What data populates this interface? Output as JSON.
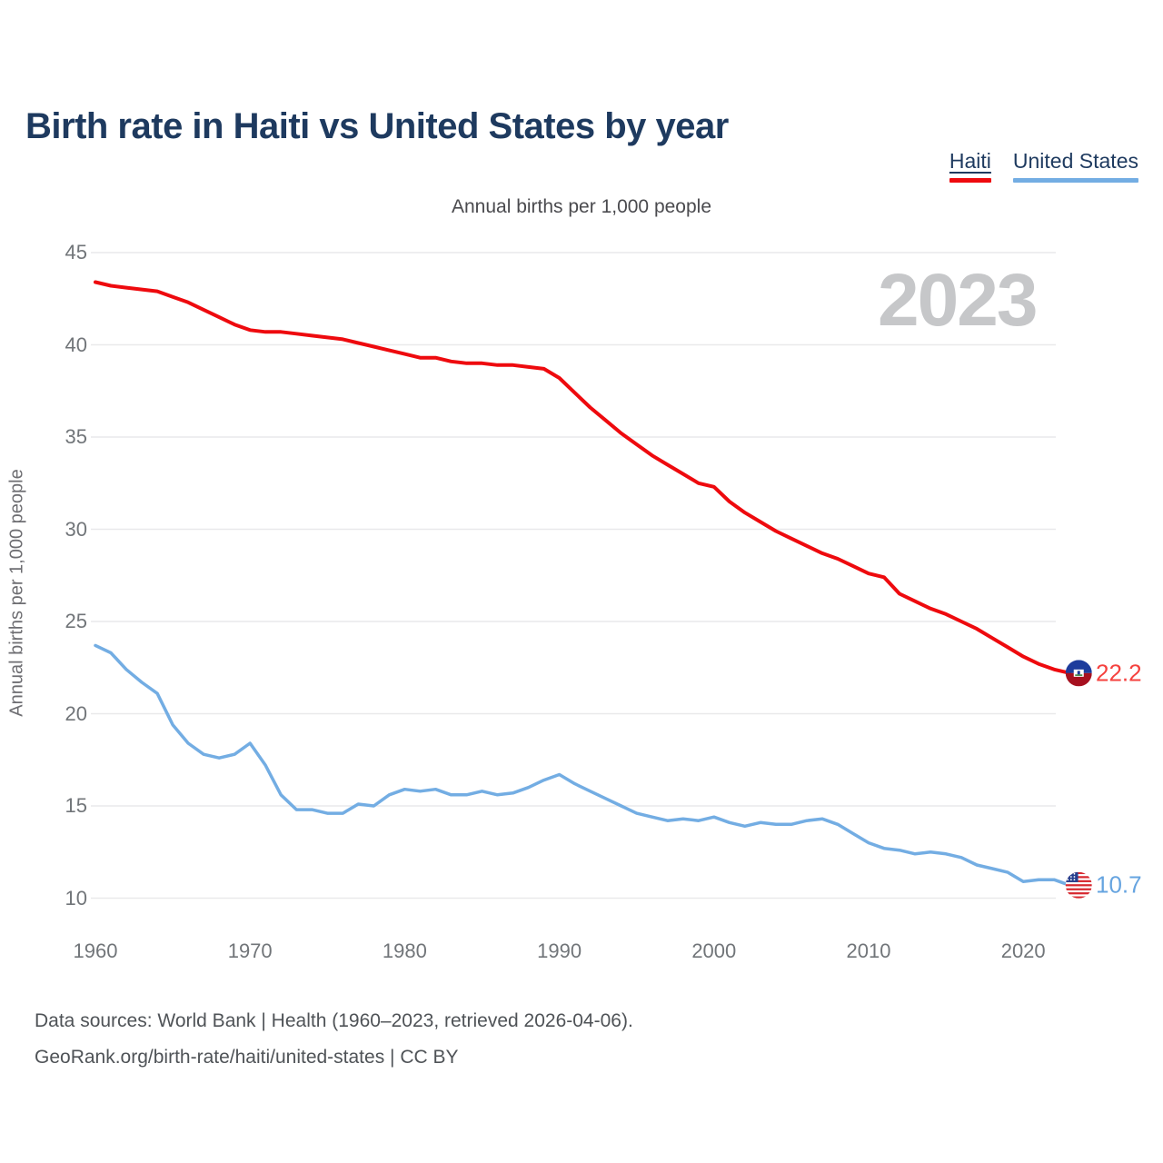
{
  "page_title": "Birth rate in Haiti vs United States by year",
  "legend": {
    "items": [
      {
        "label": "Haiti",
        "color_key": "haiti"
      },
      {
        "label": "United States",
        "color_key": "us"
      }
    ]
  },
  "watermark": "2023",
  "footer": {
    "line1": "Data sources: World Bank | Health (1960–2023, retrieved 2026-04-06).",
    "line2": "GeoRank.org/birth-rate/haiti/united-states | CC BY"
  },
  "colors": {
    "haiti": "#ee0a0e",
    "haiti_label": "#f5413e",
    "us": "#73ade3",
    "us_label": "#66a4e0",
    "navy": "#1e3a5f",
    "watermark": "#c6c7c9",
    "grid": "#e9e9eb",
    "haiti_flag_blue": "#1d3c9c",
    "haiti_flag_red": "#a6101f",
    "us_flag_blue": "#27408f",
    "us_flag_red": "#d7282f"
  },
  "chart_data": {
    "type": "line",
    "title": "Annual births per 1,000 people",
    "ylabel": "Annual births per 1,000 people",
    "xlabel": "",
    "ylim": [
      10,
      45
    ],
    "xlim": [
      1960,
      2023
    ],
    "yticks": [
      45,
      40,
      35,
      30,
      25,
      20,
      15,
      10
    ],
    "xticks": [
      1960,
      1970,
      1980,
      1990,
      2000,
      2010,
      2020
    ],
    "grid": "horizontal",
    "legend_position": "top-right",
    "years": [
      1960,
      1961,
      1962,
      1963,
      1964,
      1965,
      1966,
      1967,
      1968,
      1969,
      1970,
      1971,
      1972,
      1973,
      1974,
      1975,
      1976,
      1977,
      1978,
      1979,
      1980,
      1981,
      1982,
      1983,
      1984,
      1985,
      1986,
      1987,
      1988,
      1989,
      1990,
      1991,
      1992,
      1993,
      1994,
      1995,
      1996,
      1997,
      1998,
      1999,
      2000,
      2001,
      2002,
      2003,
      2004,
      2005,
      2006,
      2007,
      2008,
      2009,
      2010,
      2011,
      2012,
      2013,
      2014,
      2015,
      2016,
      2017,
      2018,
      2019,
      2020,
      2021,
      2022,
      2023
    ],
    "series": [
      {
        "name": "Haiti",
        "color_key": "haiti",
        "end_label": "22.2",
        "values": [
          43.4,
          43.2,
          43.1,
          43.0,
          42.9,
          42.6,
          42.3,
          41.9,
          41.5,
          41.1,
          40.8,
          40.7,
          40.7,
          40.6,
          40.5,
          40.4,
          40.3,
          40.1,
          39.9,
          39.7,
          39.5,
          39.3,
          39.3,
          39.1,
          39.0,
          39.0,
          38.9,
          38.9,
          38.8,
          38.7,
          38.2,
          37.4,
          36.6,
          35.9,
          35.2,
          34.6,
          34.0,
          33.5,
          33.0,
          32.5,
          32.3,
          31.5,
          30.9,
          30.4,
          29.9,
          29.5,
          29.1,
          28.7,
          28.4,
          28.0,
          27.6,
          27.4,
          26.5,
          26.1,
          25.7,
          25.4,
          25.0,
          24.6,
          24.1,
          23.6,
          23.1,
          22.7,
          22.4,
          22.2
        ]
      },
      {
        "name": "United States",
        "color_key": "us",
        "end_label": "10.7",
        "values": [
          23.7,
          23.3,
          22.4,
          21.7,
          21.1,
          19.4,
          18.4,
          17.8,
          17.6,
          17.8,
          18.4,
          17.2,
          15.6,
          14.8,
          14.8,
          14.6,
          14.6,
          15.1,
          15.0,
          15.6,
          15.9,
          15.8,
          15.9,
          15.6,
          15.6,
          15.8,
          15.6,
          15.7,
          16.0,
          16.4,
          16.7,
          16.2,
          15.8,
          15.4,
          15.0,
          14.6,
          14.4,
          14.2,
          14.3,
          14.2,
          14.4,
          14.1,
          13.9,
          14.1,
          14.0,
          14.0,
          14.2,
          14.3,
          14.0,
          13.5,
          13.0,
          12.7,
          12.6,
          12.4,
          12.5,
          12.4,
          12.2,
          11.8,
          11.6,
          11.4,
          10.9,
          11.0,
          11.0,
          10.7
        ]
      }
    ]
  }
}
